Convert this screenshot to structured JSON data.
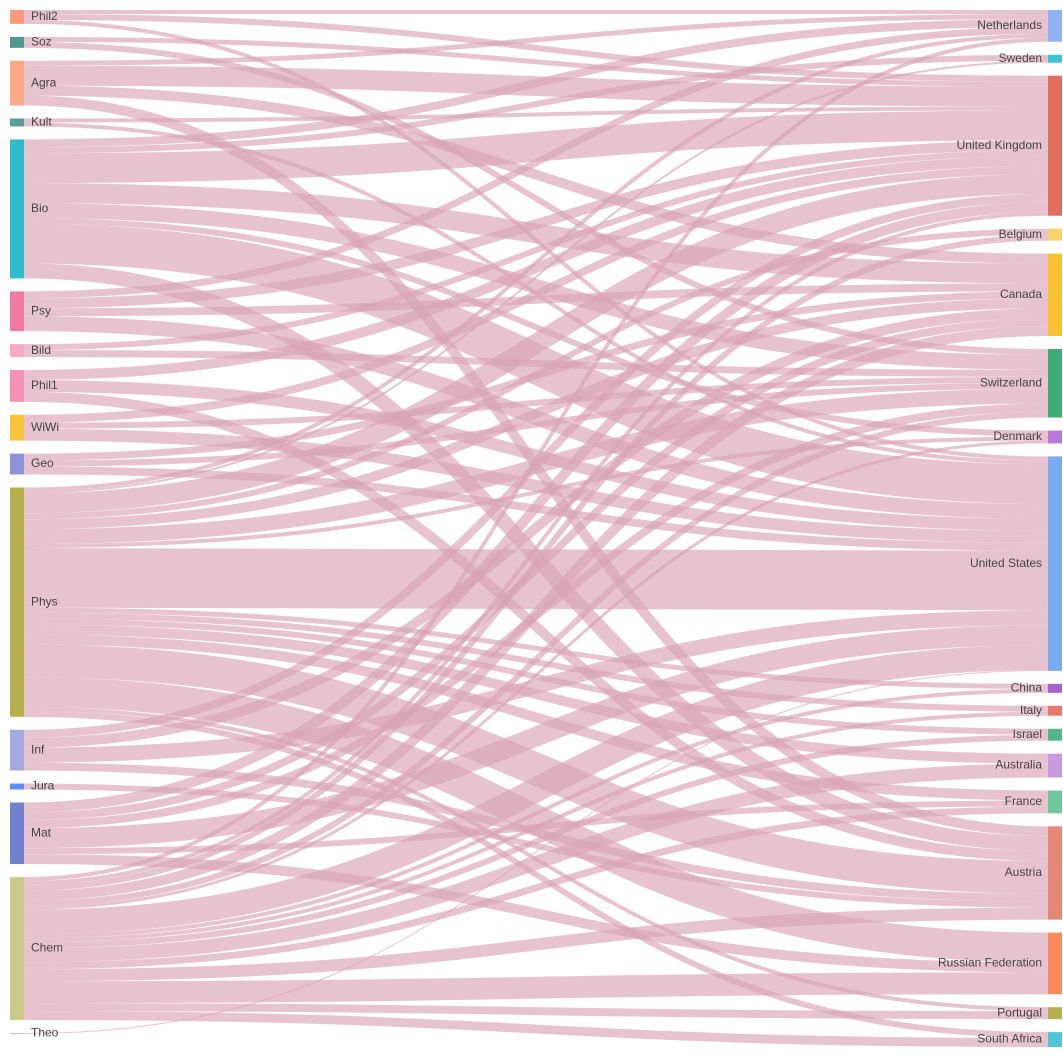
{
  "chart_data": {
    "type": "sankey",
    "nodes": [
      {
        "name": "Phil2",
        "color": "#fc9a79"
      },
      {
        "name": "Soz",
        "color": "#4f9a8f"
      },
      {
        "name": "Agra",
        "color": "#fca786"
      },
      {
        "name": "Kult",
        "color": "#5a9e96"
      },
      {
        "name": "Bio",
        "color": "#2fbccc"
      },
      {
        "name": "Psy",
        "color": "#f07aa0"
      },
      {
        "name": "Bild",
        "color": "#f7a8c4"
      },
      {
        "name": "Phil1",
        "color": "#f58fb4"
      },
      {
        "name": "WiWi",
        "color": "#f8c43c"
      },
      {
        "name": "Geo",
        "color": "#8b92d6"
      },
      {
        "name": "Phys",
        "color": "#b5b04e"
      },
      {
        "name": "Inf",
        "color": "#a3aae2"
      },
      {
        "name": "Jura",
        "color": "#5e8ff0"
      },
      {
        "name": "Mat",
        "color": "#7382cc"
      },
      {
        "name": "Chem",
        "color": "#c8c98a"
      },
      {
        "name": "Theo",
        "color": "#c0c0c0"
      },
      {
        "name": "Netherlands",
        "color": "#8fb3f3"
      },
      {
        "name": "Sweden",
        "color": "#3cc5d5"
      },
      {
        "name": "United Kingdom",
        "color": "#e06d5e"
      },
      {
        "name": "Belgium",
        "color": "#f7d36a"
      },
      {
        "name": "Canada",
        "color": "#f8c131"
      },
      {
        "name": "Switzerland",
        "color": "#3eae78"
      },
      {
        "name": "Denmark",
        "color": "#b878d8"
      },
      {
        "name": "United States",
        "color": "#7aaaf0"
      },
      {
        "name": "China",
        "color": "#a363cc"
      },
      {
        "name": "Italy",
        "color": "#e8786a"
      },
      {
        "name": "Israel",
        "color": "#52b68a"
      },
      {
        "name": "Australia",
        "color": "#c89ae0"
      },
      {
        "name": "France",
        "color": "#6ec79e"
      },
      {
        "name": "Austria",
        "color": "#e48876"
      },
      {
        "name": "Russian Federation",
        "color": "#fa8a5e"
      },
      {
        "name": "Portugal",
        "color": "#b5b04e"
      },
      {
        "name": "South Africa",
        "color": "#4ec6d6"
      }
    ],
    "links": [
      {
        "source": "Phil2",
        "target": "Netherlands",
        "value": 4
      },
      {
        "source": "Phil2",
        "target": "United Kingdom",
        "value": 6
      },
      {
        "source": "Phil2",
        "target": "United States",
        "value": 4
      },
      {
        "source": "Soz",
        "target": "United Kingdom",
        "value": 5
      },
      {
        "source": "Soz",
        "target": "Switzerland",
        "value": 6
      },
      {
        "source": "Agra",
        "target": "Netherlands",
        "value": 5
      },
      {
        "source": "Agra",
        "target": "United Kingdom",
        "value": 20
      },
      {
        "source": "Agra",
        "target": "Canada",
        "value": 10
      },
      {
        "source": "Agra",
        "target": "Austria",
        "value": 10
      },
      {
        "source": "Kult",
        "target": "United Kingdom",
        "value": 4
      },
      {
        "source": "Kult",
        "target": "United States",
        "value": 4
      },
      {
        "source": "Bio",
        "target": "Netherlands",
        "value": 8
      },
      {
        "source": "Bio",
        "target": "Sweden",
        "value": 6
      },
      {
        "source": "Bio",
        "target": "United Kingdom",
        "value": 30
      },
      {
        "source": "Bio",
        "target": "Canada",
        "value": 20
      },
      {
        "source": "Bio",
        "target": "Switzerland",
        "value": 15
      },
      {
        "source": "Bio",
        "target": "Denmark",
        "value": 6
      },
      {
        "source": "Bio",
        "target": "United States",
        "value": 40
      },
      {
        "source": "Bio",
        "target": "Austria",
        "value": 15
      },
      {
        "source": "Psy",
        "target": "Netherlands",
        "value": 7
      },
      {
        "source": "Psy",
        "target": "United Kingdom",
        "value": 10
      },
      {
        "source": "Psy",
        "target": "Canada",
        "value": 8
      },
      {
        "source": "Psy",
        "target": "United States",
        "value": 15
      },
      {
        "source": "Bild",
        "target": "United Kingdom",
        "value": 6
      },
      {
        "source": "Bild",
        "target": "Switzerland",
        "value": 7
      },
      {
        "source": "Phil1",
        "target": "United Kingdom",
        "value": 10
      },
      {
        "source": "Phil1",
        "target": "United States",
        "value": 12
      },
      {
        "source": "Phil1",
        "target": "Austria",
        "value": 10
      },
      {
        "source": "WiWi",
        "target": "United Kingdom",
        "value": 8
      },
      {
        "source": "WiWi",
        "target": "Switzerland",
        "value": 6
      },
      {
        "source": "WiWi",
        "target": "United States",
        "value": 12
      },
      {
        "source": "Geo",
        "target": "Canada",
        "value": 7
      },
      {
        "source": "Geo",
        "target": "Switzerland",
        "value": 6
      },
      {
        "source": "Geo",
        "target": "United States",
        "value": 8
      },
      {
        "source": "Phys",
        "target": "Netherlands",
        "value": 4
      },
      {
        "source": "Phys",
        "target": "Sweden",
        "value": 2
      },
      {
        "source": "Phys",
        "target": "United Kingdom",
        "value": 20
      },
      {
        "source": "Phys",
        "target": "Belgium",
        "value": 6
      },
      {
        "source": "Phys",
        "target": "Canada",
        "value": 10
      },
      {
        "source": "Phys",
        "target": "Switzerland",
        "value": 15
      },
      {
        "source": "Phys",
        "target": "Denmark",
        "value": 4
      },
      {
        "source": "Phys",
        "target": "United States",
        "value": 60
      },
      {
        "source": "Phys",
        "target": "China",
        "value": 5
      },
      {
        "source": "Phys",
        "target": "Italy",
        "value": 6
      },
      {
        "source": "Phys",
        "target": "Israel",
        "value": 6
      },
      {
        "source": "Phys",
        "target": "Australia",
        "value": 10
      },
      {
        "source": "Phys",
        "target": "France",
        "value": 10
      },
      {
        "source": "Phys",
        "target": "Austria",
        "value": 33
      },
      {
        "source": "Phys",
        "target": "Russian Federation",
        "value": 30
      },
      {
        "source": "Phys",
        "target": "Portugal",
        "value": 4
      },
      {
        "source": "Phys",
        "target": "South Africa",
        "value": 6
      },
      {
        "source": "Inf",
        "target": "United Kingdom",
        "value": 8
      },
      {
        "source": "Inf",
        "target": "Canada",
        "value": 10
      },
      {
        "source": "Inf",
        "target": "United States",
        "value": 15
      },
      {
        "source": "Inf",
        "target": "Austria",
        "value": 8
      },
      {
        "source": "Jura",
        "target": "Austria",
        "value": 6
      },
      {
        "source": "Mat",
        "target": "United Kingdom",
        "value": 10
      },
      {
        "source": "Mat",
        "target": "Canada",
        "value": 8
      },
      {
        "source": "Mat",
        "target": "Switzerland",
        "value": 8
      },
      {
        "source": "Mat",
        "target": "United States",
        "value": 20
      },
      {
        "source": "Mat",
        "target": "France",
        "value": 6
      },
      {
        "source": "Mat",
        "target": "Russian Federation",
        "value": 10
      },
      {
        "source": "Chem",
        "target": "Netherlands",
        "value": 4
      },
      {
        "source": "Chem",
        "target": "United Kingdom",
        "value": 4
      },
      {
        "source": "Chem",
        "target": "Belgium",
        "value": 6
      },
      {
        "source": "Chem",
        "target": "Canada",
        "value": 10
      },
      {
        "source": "Chem",
        "target": "Switzerland",
        "value": 6
      },
      {
        "source": "Chem",
        "target": "Denmark",
        "value": 3
      },
      {
        "source": "Chem",
        "target": "United States",
        "value": 25
      },
      {
        "source": "Chem",
        "target": "China",
        "value": 4
      },
      {
        "source": "Chem",
        "target": "Italy",
        "value": 4
      },
      {
        "source": "Chem",
        "target": "Israel",
        "value": 6
      },
      {
        "source": "Chem",
        "target": "Australia",
        "value": 14
      },
      {
        "source": "Chem",
        "target": "France",
        "value": 7
      },
      {
        "source": "Chem",
        "target": "Austria",
        "value": 12
      },
      {
        "source": "Chem",
        "target": "Russian Federation",
        "value": 22
      },
      {
        "source": "Chem",
        "target": "Portugal",
        "value": 8
      },
      {
        "source": "Chem",
        "target": "South Africa",
        "value": 9
      },
      {
        "source": "Theo",
        "target": "United States",
        "value": 1
      }
    ],
    "link_color": "#d9a3b6"
  }
}
